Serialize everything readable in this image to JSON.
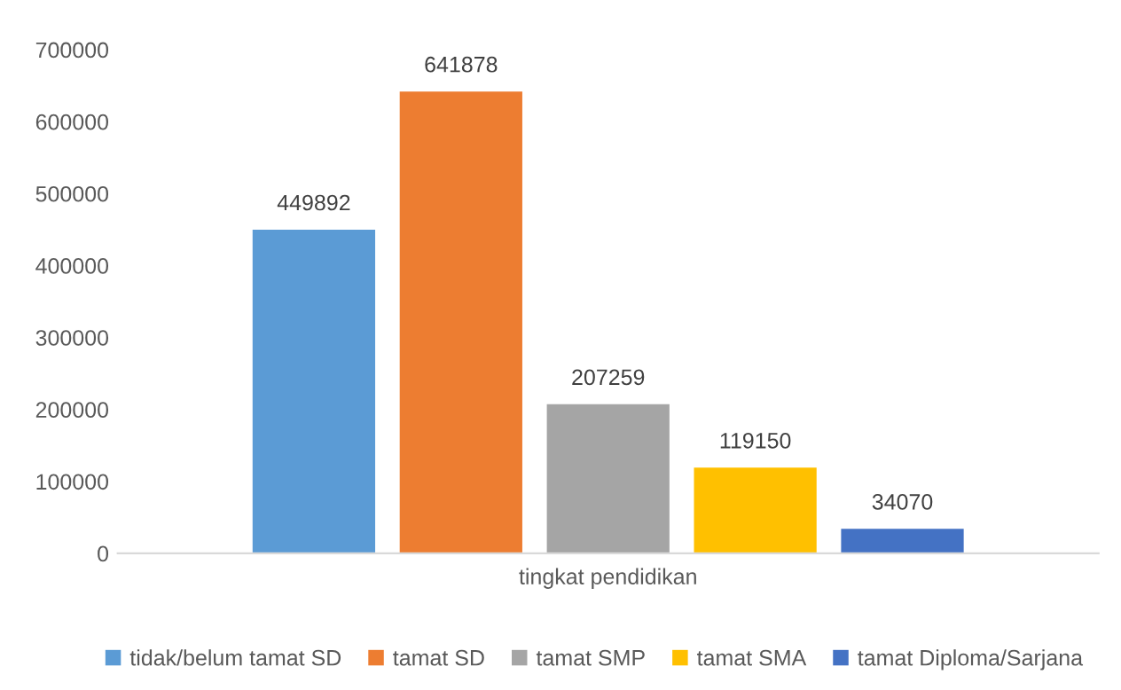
{
  "chart_data": {
    "type": "bar",
    "categories": [
      "tingkat pendidikan"
    ],
    "series": [
      {
        "name": "tidak/belum tamat SD",
        "color": "#5b9bd5",
        "values": [
          449892
        ]
      },
      {
        "name": "tamat SD",
        "color": "#ed7d31",
        "values": [
          641878
        ]
      },
      {
        "name": "tamat SMP",
        "color": "#a5a5a5",
        "values": [
          207259
        ]
      },
      {
        "name": "tamat SMA",
        "color": "#ffc000",
        "values": [
          119150
        ]
      },
      {
        "name": "tamat Diploma/Sarjana",
        "color": "#4472c4",
        "values": [
          34070
        ]
      }
    ],
    "ylim": [
      0,
      700000
    ],
    "yticks": [
      0,
      100000,
      200000,
      300000,
      400000,
      500000,
      600000,
      700000
    ],
    "data_labels": true,
    "grid": false,
    "legend": "bottom"
  }
}
